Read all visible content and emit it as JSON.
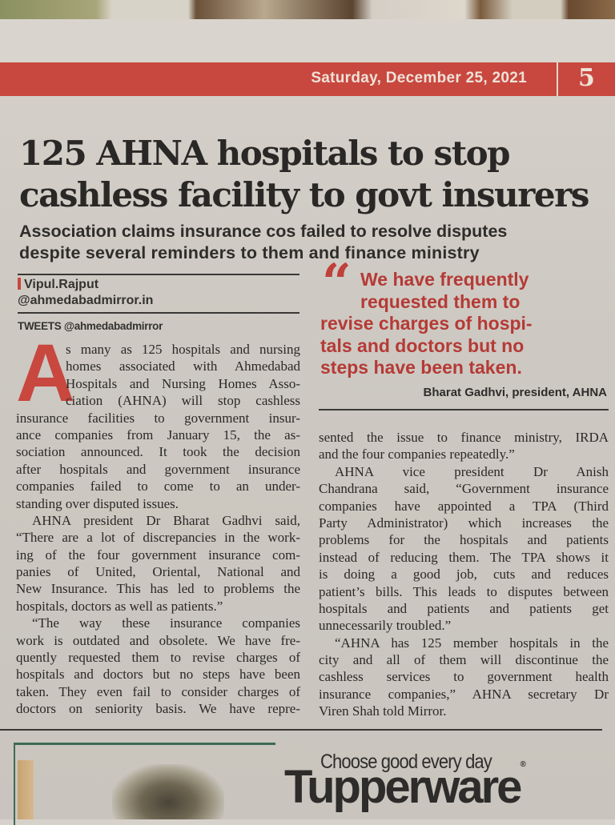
{
  "masthead": {
    "date": "Saturday, December 25, 2021",
    "page_number": "5",
    "band_color": "#c8483f"
  },
  "article": {
    "headline": [
      "125 AHNA hospitals to stop",
      "cashless facility to govt insurers"
    ],
    "subhead": [
      "Association claims insurance cos failed to resolve disputes",
      "despite several reminders to them and finance ministry"
    ],
    "byline": {
      "author": "Vipul.Rajput",
      "handle": "@ahmedabadmirror.in"
    },
    "tweets": "TWEETS @ahmedabadmirror",
    "drop_cap": "A",
    "left_column": [
      {
        "lines": [
          "s many as 125 hospitals and nursing",
          "homes associated with Ahmedabad",
          "Hospitals and Nursing Homes Asso-",
          "ciation (AHNA) will stop cashless",
          "insurance facilities to government insur-",
          "ance companies from January 15, the as-",
          "sociation announced. It took the decision",
          "after hospitals and government insurance",
          "companies failed to come to an under-",
          "standing over disputed issues."
        ]
      },
      {
        "lines": [
          "AHNA president Dr Bharat Gadhvi said,",
          "“There are a lot of discrepancies in the work-",
          "ing of the four government insurance com-",
          "panies of United, Oriental, National and",
          "New Insurance. This has led to problems the",
          "hospitals, doctors as well as patients.”"
        ]
      },
      {
        "lines": [
          "“The way these insurance companies",
          "work is outdated and obsolete. We have fre-",
          "quently requested them to revise charges of",
          "hospitals and doctors but no steps have been",
          "taken. They even fail to consider charges of",
          "doctors on seniority basis. We have repre-"
        ]
      }
    ],
    "right_column": [
      {
        "lines": [
          "sented the issue to finance ministry, IRDA",
          "and the four companies repeatedly.”"
        ]
      },
      {
        "lines": [
          "AHNA vice president Dr Anish",
          "Chandrana said, “Government insurance",
          "companies have appointed a TPA (Third",
          "Party Administrator) which increases the",
          "problems for the hospitals and patients",
          "instead of reducing them. The TPA shows it",
          "is doing a good job, cuts and reduces",
          "patient’s bills. This leads to disputes between",
          "hospitals and patients and patients get",
          "unnecessarily troubled.”"
        ]
      },
      {
        "lines": [
          "“AHNA has 125 member hospitals in the",
          "city and all of them will discontinue the",
          "cashless services to government health",
          "insurance companies,” AHNA secretary Dr",
          "Viren Shah told Mirror."
        ]
      }
    ],
    "pull_quote": {
      "mark": "“",
      "lines": [
        "We have frequently",
        "requested them to",
        "revise charges of hospi-",
        "tals and doctors but no",
        "steps have been taken."
      ],
      "attribution": "Bharat Gadhvi, president, AHNA",
      "color": "#b53a36"
    }
  },
  "advertisement": {
    "tagline": "Choose good every day",
    "brand": "Tupperware",
    "registered": "®"
  }
}
